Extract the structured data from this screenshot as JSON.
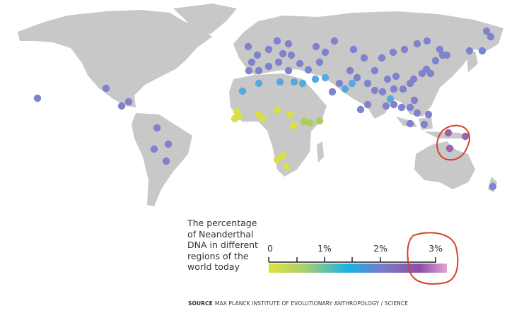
{
  "legend": {
    "title": "The percentage of Neanderthal DNA in different regions of the world today",
    "ticks": [
      "0",
      "1%",
      "2%",
      "3%"
    ],
    "range_percent": [
      0,
      3.3
    ],
    "gradient_colors": [
      "#dfe23a",
      "#a8d070",
      "#1ab0e8",
      "#7c78c8",
      "#8e4fa8",
      "#e2a6d4"
    ]
  },
  "source": {
    "label": "SOURCE",
    "text": "MAX PLANCK INSTITUTE OF EVOLUTIONARY ANTHROPOLOGY / SCIENCE"
  },
  "colors": {
    "land": "#c8c8c8",
    "annotation": "#d8402a",
    "dot_low": "#d9df48",
    "dot_midlow": "#a8cf5a",
    "dot_mid": "#55aadc",
    "dot_high": "#7f82cc",
    "dot_top": "#9c62ad"
  }
}
